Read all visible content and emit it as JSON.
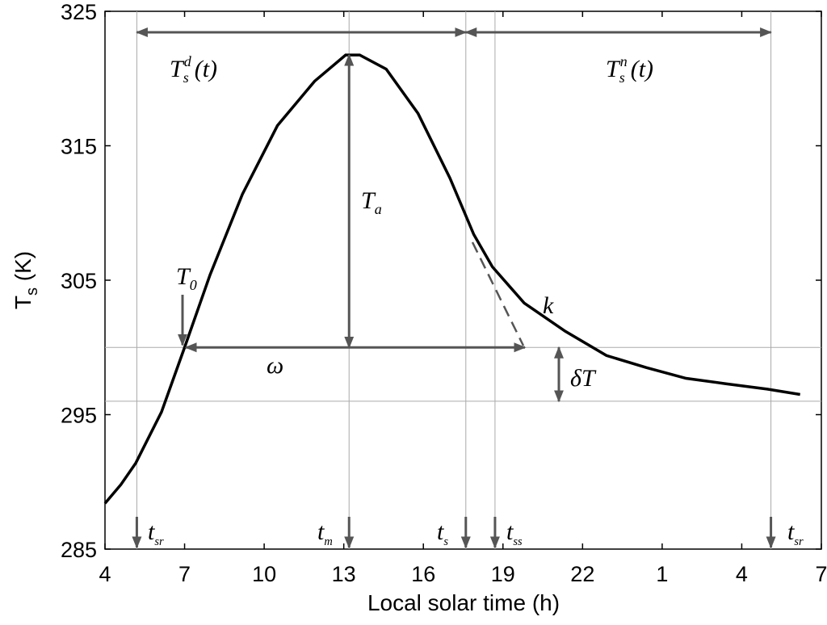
{
  "chart_data": {
    "type": "line",
    "xlabel": "Local solar time (h)",
    "ylabel": {
      "base": "T",
      "sub": "s",
      "rest": " (K)"
    },
    "x": [
      4,
      4.6,
      5.16,
      6.13,
      7,
      7.96,
      9.18,
      10.5,
      11.9,
      13.07,
      13.6,
      14.6,
      15.8,
      17.0,
      17.9,
      18.6,
      19.8,
      21.35,
      22.9,
      24.4,
      25.9,
      27.4,
      28.96,
      30.2
    ],
    "series": [
      {
        "color": "#000000",
        "values": [
          288.4,
          289.8,
          291.4,
          295.2,
          300.0,
          305.4,
          311.4,
          316.5,
          319.8,
          321.75,
          321.75,
          320.7,
          317.4,
          312.6,
          308.4,
          306.0,
          303.3,
          301.2,
          299.4,
          298.5,
          297.7,
          297.3,
          296.9,
          296.5
        ]
      }
    ],
    "xlim": [
      4,
      31
    ],
    "ylim": [
      285,
      325
    ],
    "xticks": [
      4,
      7,
      10,
      13,
      16,
      19,
      22,
      {
        "value": 25,
        "label": "1"
      },
      {
        "value": 28,
        "label": "4"
      },
      {
        "value": 31,
        "label": "7"
      }
    ],
    "yticks": [
      285,
      295,
      305,
      315,
      325
    ],
    "vlines": [
      5.2,
      13.2,
      17.6,
      18.7,
      29.1
    ],
    "hlines": [
      300,
      296
    ],
    "annotations": [
      {
        "base": "T",
        "sub": "s",
        "sup": "d",
        "rest": "(t)"
      },
      {
        "base": "T",
        "sub": "s",
        "sup": "n",
        "rest": "(t)"
      },
      {
        "base": "T",
        "sub": "a"
      },
      {
        "base": "T",
        "sub": "0"
      },
      {
        "base": "ω"
      },
      {
        "base": "k"
      },
      {
        "base": "δT"
      },
      {
        "base": "t",
        "sub": "sr"
      },
      {
        "base": "t",
        "sub": "m"
      },
      {
        "base": "t",
        "sub": "s"
      },
      {
        "base": "t",
        "sub": "ss"
      },
      {
        "base": "t",
        "sub": "sr"
      }
    ]
  }
}
